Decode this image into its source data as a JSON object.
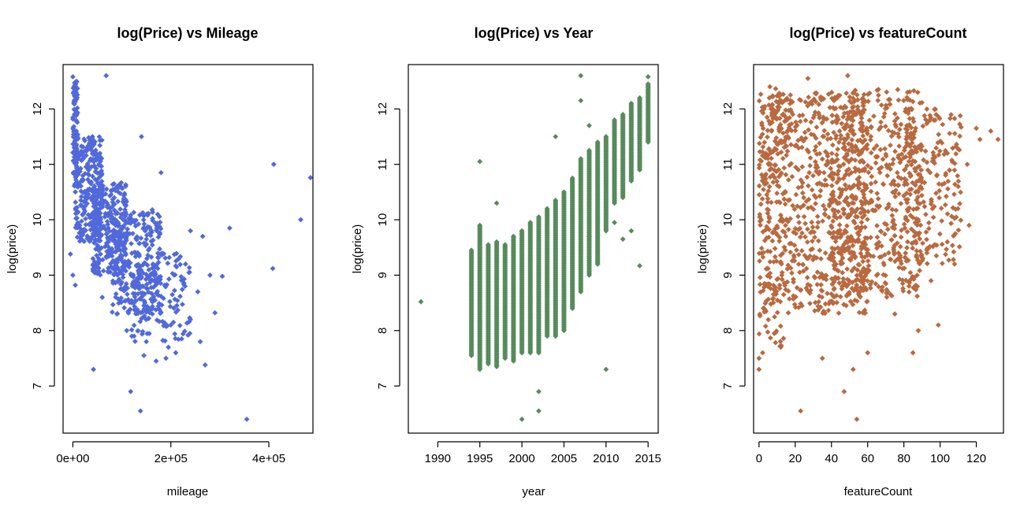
{
  "chart_data": [
    {
      "type": "scatter",
      "title": "log(Price) vs Mileage",
      "xlabel": "mileage",
      "ylabel": "log(price)",
      "xlim": [
        -20000,
        490000
      ],
      "ylim": [
        6.15,
        12.8
      ],
      "x_ticks": [
        0,
        200000,
        400000
      ],
      "x_tick_labels": [
        "0e+00",
        "2e+05",
        "4e+05"
      ],
      "y_ticks": [
        7,
        8,
        9,
        10,
        11,
        12
      ],
      "y_tick_labels": [
        "7",
        "8",
        "9",
        "10",
        "11",
        "12"
      ],
      "color": "#5169d9",
      "marker": "diamond",
      "bulk_bands": [
        {
          "x_range": [
            0,
            10000
          ],
          "y_range": [
            10.6,
            12.5
          ],
          "count": 120
        },
        {
          "x_range": [
            5000,
            60000
          ],
          "y_range": [
            9.6,
            11.5
          ],
          "count": 260
        },
        {
          "x_range": [
            40000,
            110000
          ],
          "y_range": [
            9.0,
            10.7
          ],
          "count": 280
        },
        {
          "x_range": [
            80000,
            180000
          ],
          "y_range": [
            8.3,
            10.2
          ],
          "count": 280
        },
        {
          "x_range": [
            120000,
            240000
          ],
          "y_range": [
            7.8,
            9.4
          ],
          "count": 140
        }
      ],
      "points": [
        [
          0,
          12.58
        ],
        [
          68000,
          12.6
        ],
        [
          40000,
          11.5
        ],
        [
          140000,
          11.5
        ],
        [
          180000,
          10.85
        ],
        [
          410000,
          11.0
        ],
        [
          485000,
          10.76
        ],
        [
          465000,
          10.0
        ],
        [
          320000,
          9.85
        ],
        [
          240000,
          9.8
        ],
        [
          265000,
          9.7
        ],
        [
          408000,
          9.12
        ],
        [
          305000,
          8.98
        ],
        [
          290000,
          8.32
        ],
        [
          240000,
          8.2
        ],
        [
          222000,
          7.85
        ],
        [
          260000,
          7.8
        ],
        [
          255000,
          8.7
        ],
        [
          230000,
          9.2
        ],
        [
          42000,
          7.3
        ],
        [
          118000,
          6.9
        ],
        [
          138000,
          6.55
        ],
        [
          355000,
          6.4
        ],
        [
          270000,
          7.38
        ],
        [
          210000,
          7.6
        ],
        [
          190000,
          7.5
        ],
        [
          170000,
          7.45
        ],
        [
          145000,
          7.55
        ],
        [
          150000,
          7.8
        ],
        [
          -5000,
          9.38
        ],
        [
          0,
          9.0
        ],
        [
          5000,
          8.82
        ],
        [
          60000,
          8.6
        ],
        [
          90000,
          8.3
        ],
        [
          110000,
          8.0
        ],
        [
          125000,
          7.9
        ],
        [
          200000,
          8.1
        ],
        [
          195000,
          7.7
        ],
        [
          280000,
          9.0
        ]
      ]
    },
    {
      "type": "scatter",
      "title": "log(Price) vs Year",
      "xlabel": "year",
      "ylabel": "log(price)",
      "xlim": [
        1986.5,
        2016.2
      ],
      "ylim": [
        6.15,
        12.8
      ],
      "x_ticks": [
        1990,
        1995,
        2000,
        2005,
        2010,
        2015
      ],
      "x_tick_labels": [
        "1990",
        "1995",
        "2000",
        "2005",
        "2010",
        "2015"
      ],
      "y_ticks": [
        7,
        8,
        9,
        10,
        11,
        12
      ],
      "y_tick_labels": [
        "7",
        "8",
        "9",
        "10",
        "11",
        "12"
      ],
      "color": "#578a5c",
      "marker": "diamond",
      "year_columns": [
        {
          "year": 1994,
          "min": 7.55,
          "max": 9.45
        },
        {
          "year": 1995,
          "min": 7.3,
          "max": 9.9
        },
        {
          "year": 1996,
          "min": 7.4,
          "max": 9.55
        },
        {
          "year": 1997,
          "min": 7.35,
          "max": 9.6
        },
        {
          "year": 1998,
          "min": 7.5,
          "max": 9.55
        },
        {
          "year": 1999,
          "min": 7.45,
          "max": 9.7
        },
        {
          "year": 2000,
          "min": 7.6,
          "max": 9.8
        },
        {
          "year": 2001,
          "min": 7.6,
          "max": 9.95
        },
        {
          "year": 2002,
          "min": 7.6,
          "max": 10.05
        },
        {
          "year": 2003,
          "min": 7.9,
          "max": 10.2
        },
        {
          "year": 2004,
          "min": 7.9,
          "max": 10.35
        },
        {
          "year": 2005,
          "min": 8.0,
          "max": 10.5
        },
        {
          "year": 2006,
          "min": 8.4,
          "max": 10.75
        },
        {
          "year": 2007,
          "min": 8.7,
          "max": 11.1
        },
        {
          "year": 2008,
          "min": 9.0,
          "max": 11.25
        },
        {
          "year": 2009,
          "min": 9.2,
          "max": 11.4
        },
        {
          "year": 2010,
          "min": 9.8,
          "max": 11.5
        },
        {
          "year": 2011,
          "min": 10.3,
          "max": 11.8
        },
        {
          "year": 2012,
          "min": 10.4,
          "max": 11.9
        },
        {
          "year": 2013,
          "min": 10.7,
          "max": 12.1
        },
        {
          "year": 2014,
          "min": 10.9,
          "max": 12.2
        },
        {
          "year": 2015,
          "min": 11.4,
          "max": 12.45
        }
      ],
      "points": [
        [
          1988,
          8.52
        ],
        [
          1995,
          11.05
        ],
        [
          1997,
          10.3
        ],
        [
          2000,
          6.4
        ],
        [
          2002,
          6.55
        ],
        [
          2002,
          6.9
        ],
        [
          2004,
          11.5
        ],
        [
          2007,
          12.6
        ],
        [
          2007,
          12.15
        ],
        [
          2010,
          7.3
        ],
        [
          2014,
          9.17
        ],
        [
          2015,
          12.58
        ],
        [
          2008,
          11.7
        ],
        [
          2008,
          9.7
        ],
        [
          2012,
          9.65
        ],
        [
          2009,
          9.2
        ],
        [
          2013,
          9.8
        ],
        [
          2011,
          9.95
        ]
      ]
    },
    {
      "type": "scatter",
      "title": "log(Price) vs featureCount",
      "xlabel": "featureCount",
      "ylabel": "log(price)",
      "xlim": [
        -3,
        135
      ],
      "ylim": [
        6.15,
        12.8
      ],
      "x_ticks": [
        0,
        20,
        40,
        60,
        80,
        100,
        120
      ],
      "x_tick_labels": [
        "0",
        "20",
        "40",
        "60",
        "80",
        "100",
        "120"
      ],
      "y_ticks": [
        7,
        8,
        9,
        10,
        11,
        12
      ],
      "y_tick_labels": [
        "7",
        "8",
        "9",
        "10",
        "11",
        "12"
      ],
      "color": "#b86a40",
      "marker": "diamond",
      "bulk_bands": [
        {
          "x_range": [
            0,
            60
          ],
          "y_range": [
            8.3,
            12.3
          ],
          "count": 700
        },
        {
          "x_range": [
            40,
            90
          ],
          "y_range": [
            8.6,
            12.35
          ],
          "count": 550
        },
        {
          "x_range": [
            80,
            112
          ],
          "y_range": [
            9.2,
            12.0
          ],
          "count": 200
        },
        {
          "x_range": [
            0,
            15
          ],
          "y_range": [
            7.6,
            12.4
          ],
          "count": 120
        }
      ],
      "points": [
        [
          0,
          7.3
        ],
        [
          0,
          7.5
        ],
        [
          2,
          7.6
        ],
        [
          23,
          6.55
        ],
        [
          54,
          6.4
        ],
        [
          47,
          6.9
        ],
        [
          88,
          8.0
        ],
        [
          99,
          8.1
        ],
        [
          85,
          7.6
        ],
        [
          95,
          8.9
        ],
        [
          108,
          9.2
        ],
        [
          116,
          9.9
        ],
        [
          122,
          11.45
        ],
        [
          128,
          11.6
        ],
        [
          132,
          11.45
        ],
        [
          120,
          11.65
        ],
        [
          110,
          10.6
        ],
        [
          104,
          9.6
        ],
        [
          75,
          8.3
        ],
        [
          52,
          7.3
        ],
        [
          60,
          7.6
        ],
        [
          35,
          7.5
        ],
        [
          12,
          7.7
        ],
        [
          49,
          12.6
        ],
        [
          27,
          12.55
        ],
        [
          6,
          12.4
        ],
        [
          66,
          12.35
        ],
        [
          82,
          12.3
        ],
        [
          115,
          11.0
        ]
      ]
    }
  ]
}
